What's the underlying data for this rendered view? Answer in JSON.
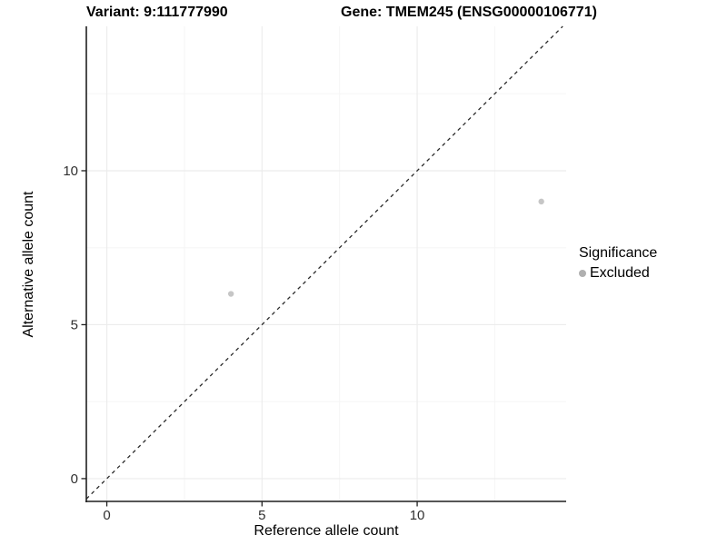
{
  "chart_data": {
    "type": "scatter",
    "title_left": "Variant: 9:111777990",
    "title_right": "Gene: TMEM245 (ENSG00000106771)",
    "xlabel": "Reference allele count",
    "ylabel": "Alternative allele count",
    "xlim": [
      -0.66,
      14.8
    ],
    "ylim": [
      -0.74,
      14.69
    ],
    "x_major_ticks": [
      0,
      5,
      10
    ],
    "y_major_ticks": [
      0,
      5,
      10
    ],
    "x_minor_ticks": [
      2.5,
      7.5,
      12.5
    ],
    "y_minor_ticks": [
      2.5,
      7.5,
      12.5
    ],
    "grid": true,
    "reference_line": {
      "type": "identity",
      "slope": 1,
      "intercept": 0,
      "style": "dashed",
      "color": "#2a2a2a"
    },
    "series": [
      {
        "name": "Excluded",
        "marker": "circle",
        "color": "#c6c6c6",
        "points": [
          [
            4,
            6
          ],
          [
            14,
            9
          ]
        ]
      }
    ],
    "legend": {
      "title": "Significance",
      "position": "right",
      "entries": [
        {
          "label": "Excluded",
          "color": "#b0b0b0"
        }
      ]
    },
    "colors": {
      "grid_major": "#ececec",
      "grid_minor": "#f5f5f5",
      "axis_line": "#1f1f1f",
      "tick_label": "#303030",
      "title": "#000000"
    }
  }
}
